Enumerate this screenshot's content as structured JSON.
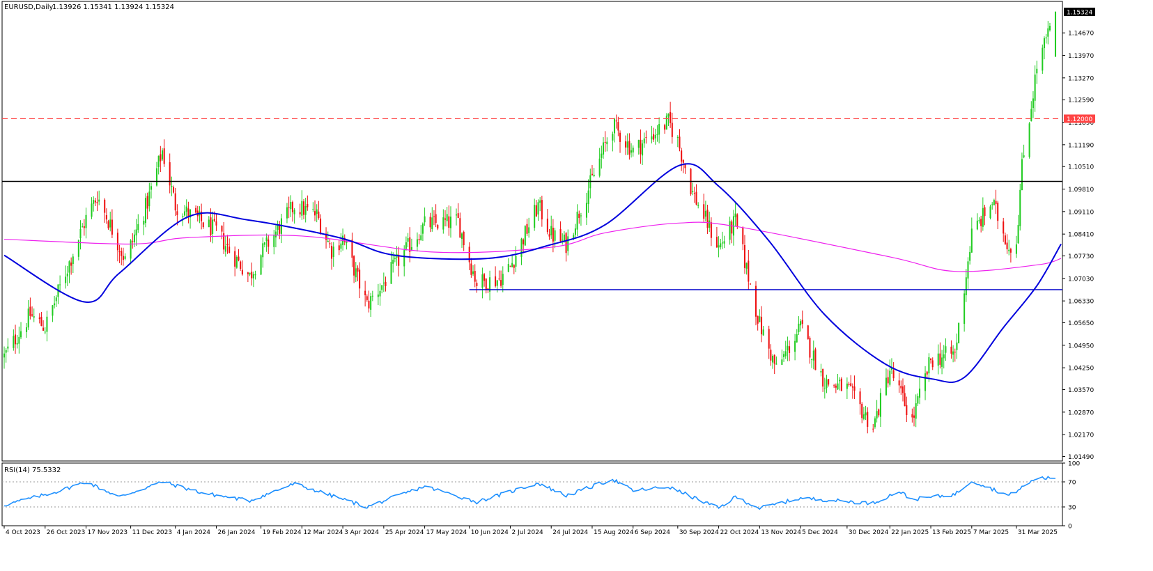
{
  "header": {
    "symbol_label": "EURUSD,Daily",
    "ohlc_label": "1.13926 1.15341 1.13924 1.15324"
  },
  "rsi_header": {
    "label": "RSI(14) 75.5332"
  },
  "colors": {
    "bull_candle": "#22cc22",
    "bear_candle": "#ee1111",
    "ma_fast": "#0000dd",
    "ma_slow": "#ee22ee",
    "rsi_line": "#1e90ff",
    "resistance_dashed": "#ff4444",
    "support_black": "#000000",
    "support_blue": "#0000cc",
    "axis_text": "#000000"
  },
  "chart_data": [
    {
      "type": "candlestick",
      "title": "",
      "x_ticks": [
        "4 Oct 2023",
        "26 Oct 2023",
        "17 Nov 2023",
        "11 Dec 2023",
        "4 Jan 2024",
        "26 Jan 2024",
        "19 Feb 2024",
        "12 Mar 2024",
        "3 Apr 2024",
        "25 Apr 2024",
        "17 May 2024",
        "10 Jun 2024",
        "2 Jul 2024",
        "24 Jul 2024",
        "15 Aug 2024",
        "6 Sep 2024",
        "30 Sep 2024",
        "22 Oct 2024",
        "13 Nov 2024",
        "5 Dec 2024",
        "30 Dec 2024",
        "22 Jan 2025",
        "13 Feb 2025",
        "7 Mar 2025",
        "31 Mar 2025"
      ],
      "y_ticks": [
        "1.15324",
        "1.14670",
        "1.13970",
        "1.13270",
        "1.12590",
        "1.11890",
        "1.11190",
        "1.10510",
        "1.09810",
        "1.09110",
        "1.08410",
        "1.07730",
        "1.07030",
        "1.06330",
        "1.05650",
        "1.04950",
        "1.04250",
        "1.03570",
        "1.02870",
        "1.02170",
        "1.01490"
      ],
      "ylim": [
        1.0135,
        1.1565
      ],
      "last_price": 1.15324,
      "anchors": [
        {
          "date": "4 Oct 2023",
          "close": 1.046
        },
        {
          "date": "18 Oct 2023",
          "close": 1.059
        },
        {
          "date": "26 Oct 2023",
          "close": 1.055
        },
        {
          "date": "2 Nov 2023",
          "close": 1.066
        },
        {
          "date": "17 Nov 2023",
          "close": 1.089
        },
        {
          "date": "23 Nov 2023",
          "close": 1.096
        },
        {
          "date": "30 Nov 2023",
          "close": 1.087
        },
        {
          "date": "8 Dec 2023",
          "close": 1.076
        },
        {
          "date": "20 Dec 2023",
          "close": 1.094
        },
        {
          "date": "28 Dec 2023",
          "close": 1.11
        },
        {
          "date": "4 Jan 2024",
          "close": 1.093
        },
        {
          "date": "26 Jan 2024",
          "close": 1.085
        },
        {
          "date": "2 Feb 2024",
          "close": 1.079
        },
        {
          "date": "13 Feb 2024",
          "close": 1.071
        },
        {
          "date": "19 Feb 2024",
          "close": 1.078
        },
        {
          "date": "8 Mar 2024",
          "close": 1.093
        },
        {
          "date": "12 Mar 2024",
          "close": 1.092
        },
        {
          "date": "20 Mar 2024",
          "close": 1.09
        },
        {
          "date": "28 Mar 2024",
          "close": 1.079
        },
        {
          "date": "3 Apr 2024",
          "close": 1.083
        },
        {
          "date": "16 Apr 2024",
          "close": 1.062
        },
        {
          "date": "25 Apr 2024",
          "close": 1.069
        },
        {
          "date": "3 May 2024",
          "close": 1.076
        },
        {
          "date": "17 May 2024",
          "close": 1.087
        },
        {
          "date": "4 Jun 2024",
          "close": 1.088
        },
        {
          "date": "10 Jun 2024",
          "close": 1.076
        },
        {
          "date": "14 Jun 2024",
          "close": 1.069
        },
        {
          "date": "26 Jun 2024",
          "close": 1.07
        },
        {
          "date": "2 Jul 2024",
          "close": 1.074
        },
        {
          "date": "17 Jul 2024",
          "close": 1.093
        },
        {
          "date": "24 Jul 2024",
          "close": 1.084
        },
        {
          "date": "1 Aug 2024",
          "close": 1.081
        },
        {
          "date": "15 Aug 2024",
          "close": 1.101
        },
        {
          "date": "26 Aug 2024",
          "close": 1.118
        },
        {
          "date": "6 Sep 2024",
          "close": 1.11
        },
        {
          "date": "25 Sep 2024",
          "close": 1.119
        },
        {
          "date": "30 Sep 2024",
          "close": 1.113
        },
        {
          "date": "8 Oct 2024",
          "close": 1.097
        },
        {
          "date": "22 Oct 2024",
          "close": 1.08
        },
        {
          "date": "31 Oct 2024",
          "close": 1.088
        },
        {
          "date": "13 Nov 2024",
          "close": 1.056
        },
        {
          "date": "22 Nov 2024",
          "close": 1.042
        },
        {
          "date": "5 Dec 2024",
          "close": 1.055
        },
        {
          "date": "18 Dec 2024",
          "close": 1.038
        },
        {
          "date": "30 Dec 2024",
          "close": 1.036
        },
        {
          "date": "13 Jan 2025",
          "close": 1.024
        },
        {
          "date": "22 Jan 2025",
          "close": 1.042
        },
        {
          "date": "3 Feb 2025",
          "close": 1.026
        },
        {
          "date": "13 Feb 2025",
          "close": 1.045
        },
        {
          "date": "26 Feb 2025",
          "close": 1.047
        },
        {
          "date": "7 Mar 2025",
          "close": 1.084
        },
        {
          "date": "18 Mar 2025",
          "close": 1.094
        },
        {
          "date": "27 Mar 2025",
          "close": 1.08
        },
        {
          "date": "31 Mar 2025",
          "close": 1.082
        },
        {
          "date": "3 Apr 2025",
          "close": 1.105
        },
        {
          "date": "11 Apr 2025",
          "close": 1.136
        },
        {
          "date": "21 Apr 2025",
          "close": 1.153
        }
      ],
      "horizontal_lines": [
        {
          "price": 1.12,
          "style": "dashed",
          "label": "1.12000"
        },
        {
          "price": 1.1005,
          "style": "solid-black",
          "label": ""
        },
        {
          "price": 1.0668,
          "style": "solid-blue",
          "label": ""
        }
      ],
      "ma_fast_anchors": [
        {
          "date": "4 Oct 2023",
          "value": 1.0775
        },
        {
          "date": "16 Nov 2023",
          "value": 1.063
        },
        {
          "date": "5 Dec 2023",
          "value": 1.072
        },
        {
          "date": "11 Jan 2024",
          "value": 1.0895
        },
        {
          "date": "12 Feb 2024",
          "value": 1.0885
        },
        {
          "date": "1 Apr 2024",
          "value": 1.083
        },
        {
          "date": "1 May 2024",
          "value": 1.0775
        },
        {
          "date": "19 Jun 2024",
          "value": 1.0765
        },
        {
          "date": "22 Jul 2024",
          "value": 1.0805
        },
        {
          "date": "22 Aug 2024",
          "value": 1.087
        },
        {
          "date": "1 Oct 2024",
          "value": 1.1055
        },
        {
          "date": "22 Oct 2024",
          "value": 1.099
        },
        {
          "date": "18 Nov 2024",
          "value": 1.082
        },
        {
          "date": "18 Dec 2024",
          "value": 1.059
        },
        {
          "date": "20 Jan 2025",
          "value": 1.0435
        },
        {
          "date": "14 Feb 2025",
          "value": 1.039
        },
        {
          "date": "3 Mar 2025",
          "value": 1.0395
        },
        {
          "date": "24 Mar 2025",
          "value": 1.055
        },
        {
          "date": "11 Apr 2025",
          "value": 1.068
        },
        {
          "date": "24 Apr 2025",
          "value": 1.081
        }
      ],
      "ma_slow_anchors": [
        {
          "date": "4 Oct 2023",
          "value": 1.0825
        },
        {
          "date": "11 Dec 2023",
          "value": 1.081
        },
        {
          "date": "11 Jan 2024",
          "value": 1.083
        },
        {
          "date": "12 Mar 2024",
          "value": 1.0835
        },
        {
          "date": "22 May 2024",
          "value": 1.0785
        },
        {
          "date": "24 Jul 2024",
          "value": 1.08
        },
        {
          "date": "22 Aug 2024",
          "value": 1.0845
        },
        {
          "date": "30 Sep 2024",
          "value": 1.0875
        },
        {
          "date": "31 Oct 2024",
          "value": 1.0865
        },
        {
          "date": "22 Jan 2025",
          "value": 1.077
        },
        {
          "date": "26 Feb 2025",
          "value": 1.0725
        },
        {
          "date": "11 Apr 2025",
          "value": 1.0745
        },
        {
          "date": "24 Apr 2025",
          "value": 1.0765
        }
      ]
    },
    {
      "type": "line",
      "title": "",
      "name": "RSI(14)",
      "value_label": "75.5332",
      "y_ticks": [
        "100",
        "70",
        "30",
        "0"
      ],
      "ylim": [
        0,
        100
      ],
      "levels": [
        70,
        30
      ],
      "anchors": [
        {
          "date": "4 Oct 2023",
          "value": 33
        },
        {
          "date": "2 Nov 2023",
          "value": 55
        },
        {
          "date": "17 Nov 2023",
          "value": 70
        },
        {
          "date": "5 Dec 2023",
          "value": 46
        },
        {
          "date": "28 Dec 2023",
          "value": 70
        },
        {
          "date": "19 Jan 2024",
          "value": 52
        },
        {
          "date": "13 Feb 2024",
          "value": 40
        },
        {
          "date": "8 Mar 2024",
          "value": 67
        },
        {
          "date": "16 Apr 2024",
          "value": 30
        },
        {
          "date": "17 May 2024",
          "value": 63
        },
        {
          "date": "14 Jun 2024",
          "value": 38
        },
        {
          "date": "17 Jul 2024",
          "value": 68
        },
        {
          "date": "1 Aug 2024",
          "value": 48
        },
        {
          "date": "26 Aug 2024",
          "value": 74
        },
        {
          "date": "6 Sep 2024",
          "value": 56
        },
        {
          "date": "25 Sep 2024",
          "value": 62
        },
        {
          "date": "22 Oct 2024",
          "value": 28
        },
        {
          "date": "31 Oct 2024",
          "value": 46
        },
        {
          "date": "13 Nov 2024",
          "value": 28
        },
        {
          "date": "5 Dec 2024",
          "value": 44
        },
        {
          "date": "13 Jan 2025",
          "value": 36
        },
        {
          "date": "27 Jan 2025",
          "value": 55
        },
        {
          "date": "3 Feb 2025",
          "value": 42
        },
        {
          "date": "26 Feb 2025",
          "value": 50
        },
        {
          "date": "7 Mar 2025",
          "value": 72
        },
        {
          "date": "27 Mar 2025",
          "value": 48
        },
        {
          "date": "11 Apr 2025",
          "value": 76
        },
        {
          "date": "24 Apr 2025",
          "value": 75.5
        }
      ]
    }
  ]
}
